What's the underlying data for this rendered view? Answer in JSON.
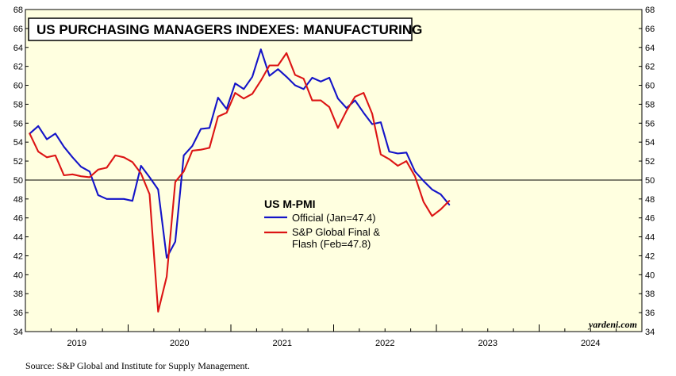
{
  "chart_data": {
    "type": "line",
    "title": "US PURCHASING MANAGERS INDEXES: MANUFACTURING",
    "legend_title": "US M-PMI",
    "legend_placement": "center",
    "ylim": [
      34,
      68
    ],
    "y_ticks": [
      34,
      36,
      38,
      40,
      42,
      44,
      46,
      48,
      50,
      52,
      54,
      56,
      58,
      60,
      62,
      64,
      66,
      68
    ],
    "reference_line": 50,
    "x_start": 2019.0,
    "x_end": 2025.0,
    "years": [
      "2019",
      "2020",
      "2021",
      "2022",
      "2023",
      "2024"
    ],
    "credit": "yardeni.com",
    "source": "Source: S&P Global and Institute for Supply Management.",
    "series": [
      {
        "name": "Official",
        "legend_label": "Official (Jan=47.4)",
        "color": "#1414c8",
        "start": 2019.0,
        "values": [
          54.9,
          55.7,
          54.3,
          54.9,
          53.5,
          52.4,
          51.4,
          50.9,
          48.4,
          48.0,
          48.0,
          48.0,
          47.8,
          51.5,
          50.3,
          49.0,
          41.8,
          43.5,
          52.6,
          53.6,
          55.4,
          55.5,
          58.7,
          57.5,
          60.2,
          59.6,
          60.9,
          63.8,
          61.0,
          61.7,
          60.9,
          60.0,
          59.6,
          60.8,
          60.4,
          60.8,
          58.6,
          57.6,
          58.4,
          57.1,
          55.9,
          56.1,
          53.0,
          52.8,
          52.9,
          50.9,
          49.9,
          49.0,
          48.5,
          47.4
        ]
      },
      {
        "name": "S&P Global Final & Flash",
        "legend_label": [
          "S&P Global Final &",
          "Flash (Feb=47.8)"
        ],
        "color": "#dc1414",
        "start": 2019.0,
        "values": [
          54.9,
          53.0,
          52.4,
          52.6,
          50.5,
          50.6,
          50.4,
          50.3,
          51.1,
          51.3,
          52.6,
          52.4,
          51.9,
          50.7,
          48.5,
          36.1,
          39.8,
          49.8,
          50.9,
          53.1,
          53.2,
          53.4,
          56.7,
          57.1,
          59.2,
          58.6,
          59.1,
          60.5,
          62.1,
          62.1,
          63.4,
          61.1,
          60.7,
          58.4,
          58.4,
          57.7,
          55.5,
          57.3,
          58.8,
          59.2,
          57.0,
          52.7,
          52.2,
          51.5,
          52.0,
          50.4,
          47.7,
          46.2,
          46.9,
          47.8
        ]
      }
    ]
  }
}
